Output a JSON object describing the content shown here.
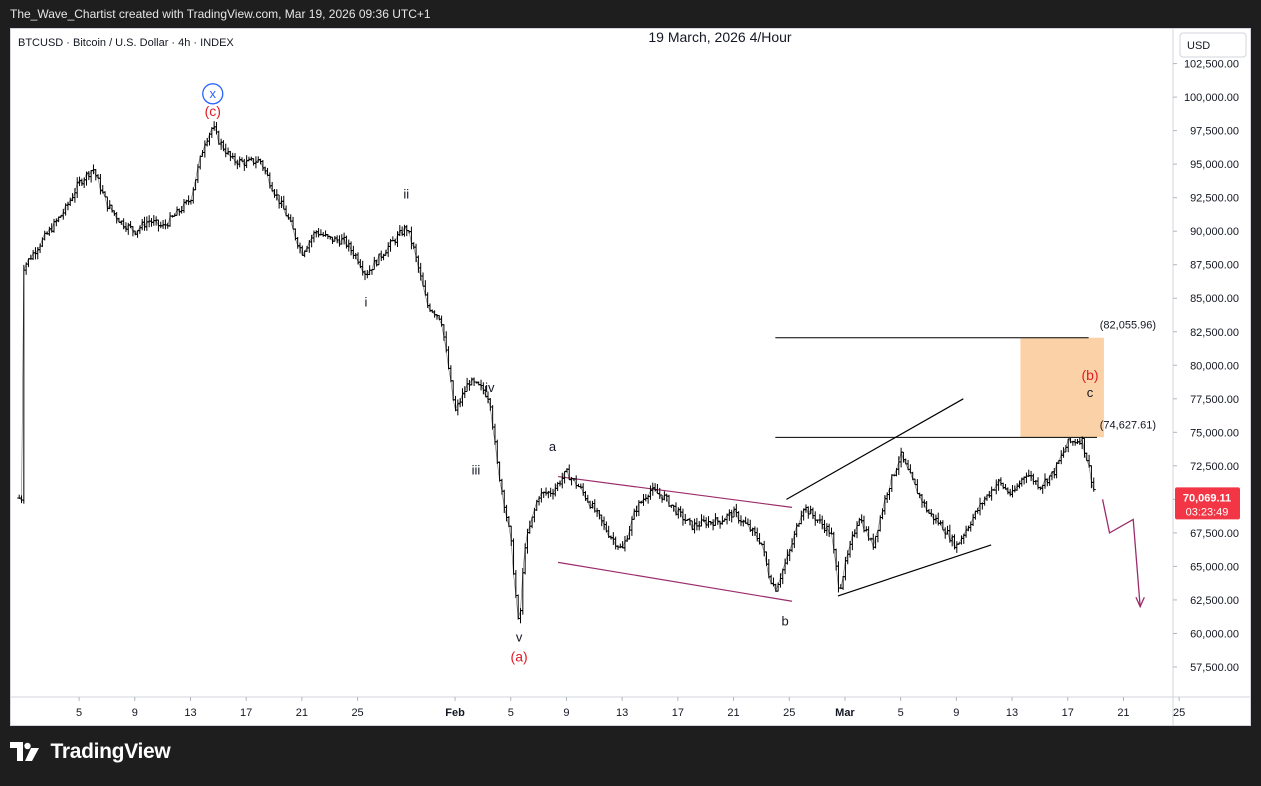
{
  "header": {
    "attribution": "The_Wave_Chartist created with TradingView.com, Mar 19, 2026 09:36 UTC+1"
  },
  "footer": {
    "brand": "TradingView",
    "logo_icon": "tradingview-logo-icon"
  },
  "colors": {
    "background_outer": "#1e1e1e",
    "panel": "#ffffff",
    "candles": "#000000",
    "wave_red": "#e01b24",
    "channel_purple": "#9c2b6b",
    "target_zone": "#fbd2a8",
    "price_tag": "#f23645",
    "circle_blue": "#2962ff"
  },
  "chart_data": {
    "type": "line",
    "symbol_label": "BTCUSD · Bitcoin / U.S. Dollar · 4h · INDEX",
    "title": "19 March, 2026 4/Hour",
    "currency": "USD",
    "ylim": [
      55500,
      104500
    ],
    "yticks": [
      "102,500.00",
      "100,000.00",
      "97,500.00",
      "95,000.00",
      "92,500.00",
      "90,000.00",
      "87,500.00",
      "85,000.00",
      "82,500.00",
      "80,000.00",
      "77,500.00",
      "75,000.00",
      "72,500.00",
      "70,000.00",
      "67,500.00",
      "65,000.00",
      "62,500.00",
      "60,000.00",
      "57,500.00"
    ],
    "ytick_values": [
      102500,
      100000,
      97500,
      95000,
      92500,
      90000,
      87500,
      85000,
      82500,
      80000,
      77500,
      75000,
      72500,
      70000,
      67500,
      65000,
      62500,
      60000,
      57500
    ],
    "xticks": [
      {
        "label": "5",
        "d": 5
      },
      {
        "label": "9",
        "d": 9
      },
      {
        "label": "13",
        "d": 13
      },
      {
        "label": "17",
        "d": 17
      },
      {
        "label": "21",
        "d": 21
      },
      {
        "label": "25",
        "d": 25
      },
      {
        "label": "Feb",
        "d": 32,
        "bold": true
      },
      {
        "label": "5",
        "d": 36
      },
      {
        "label": "9",
        "d": 40
      },
      {
        "label": "13",
        "d": 44
      },
      {
        "label": "17",
        "d": 48
      },
      {
        "label": "21",
        "d": 52
      },
      {
        "label": "25",
        "d": 56
      },
      {
        "label": "Mar",
        "d": 60,
        "bold": true
      },
      {
        "label": "5",
        "d": 64
      },
      {
        "label": "9",
        "d": 68
      },
      {
        "label": "13",
        "d": 72
      },
      {
        "label": "17",
        "d": 76
      },
      {
        "label": "21",
        "d": 80
      },
      {
        "label": "25",
        "d": 84
      }
    ],
    "series": [
      {
        "points": [
          [
            1,
            87300
          ],
          [
            2,
            88800
          ],
          [
            3,
            90200
          ],
          [
            4,
            91600
          ],
          [
            5,
            93600
          ],
          [
            6,
            94700
          ],
          [
            7,
            92000
          ],
          [
            8,
            90700
          ],
          [
            9,
            90000
          ],
          [
            10,
            90800
          ],
          [
            11,
            90300
          ],
          [
            12,
            91300
          ],
          [
            13,
            92400
          ],
          [
            14,
            96600
          ],
          [
            14.6,
            97800
          ],
          [
            15,
            96800
          ],
          [
            16,
            95300
          ],
          [
            17,
            95100
          ],
          [
            18,
            95300
          ],
          [
            19,
            93000
          ],
          [
            20,
            91000
          ],
          [
            21,
            88400
          ],
          [
            22,
            90000
          ],
          [
            23,
            89400
          ],
          [
            24,
            89300
          ],
          [
            25,
            88000
          ],
          [
            25.6,
            86800
          ],
          [
            27,
            88600
          ],
          [
            28.5,
            90300
          ],
          [
            29,
            88800
          ],
          [
            30,
            84500
          ],
          [
            31,
            83500
          ],
          [
            32,
            76500
          ],
          [
            33,
            78800
          ],
          [
            34,
            78200
          ],
          [
            34.5,
            77500
          ],
          [
            35,
            72800
          ],
          [
            36,
            67000
          ],
          [
            36.6,
            60100
          ],
          [
            37,
            66500
          ],
          [
            38,
            70300
          ],
          [
            39,
            70600
          ],
          [
            40,
            72000
          ],
          [
            41,
            70800
          ],
          [
            42,
            69200
          ],
          [
            43,
            67500
          ],
          [
            44,
            66200
          ],
          [
            45,
            69300
          ],
          [
            46,
            70700
          ],
          [
            47,
            70200
          ],
          [
            48,
            69000
          ],
          [
            49,
            68000
          ],
          [
            50,
            68300
          ],
          [
            51,
            68400
          ],
          [
            52,
            69000
          ],
          [
            53,
            68000
          ],
          [
            54,
            66800
          ],
          [
            54.5,
            64500
          ],
          [
            55,
            63300
          ],
          [
            56,
            66000
          ],
          [
            57,
            69500
          ],
          [
            58,
            68500
          ],
          [
            59,
            67500
          ],
          [
            59.6,
            63200
          ],
          [
            60,
            65000
          ],
          [
            61,
            68800
          ],
          [
            62,
            66500
          ],
          [
            63,
            70500
          ],
          [
            64,
            73300
          ],
          [
            65,
            71000
          ],
          [
            66,
            69000
          ],
          [
            67,
            68000
          ],
          [
            68,
            66500
          ],
          [
            69,
            68300
          ],
          [
            70,
            70000
          ],
          [
            71,
            71300
          ],
          [
            72,
            70300
          ],
          [
            73,
            72000
          ],
          [
            74,
            71000
          ],
          [
            75,
            72000
          ],
          [
            76,
            74200
          ],
          [
            77,
            74500
          ],
          [
            77.5,
            72500
          ],
          [
            78,
            70100
          ]
        ]
      }
    ],
    "annotations": [
      {
        "text": "x",
        "circled": true,
        "d": 14.6,
        "y": 99950
      },
      {
        "text": "(c)",
        "color": "red",
        "d": 14.6,
        "y": 98600
      },
      {
        "text": "ii",
        "d": 28.5,
        "y": 92450
      },
      {
        "text": "i",
        "d": 25.6,
        "y": 84400
      },
      {
        "text": "iv",
        "d": 34.5,
        "y": 78000
      },
      {
        "text": "iii",
        "d": 33.5,
        "y": 71850
      },
      {
        "text": "a",
        "d": 39,
        "y": 73600
      },
      {
        "text": "v",
        "d": 36.6,
        "y": 59400
      },
      {
        "text": "(a)",
        "color": "red",
        "d": 36.6,
        "y": 57900
      },
      {
        "text": "b",
        "d": 55.7,
        "y": 60600
      },
      {
        "text": "(b)",
        "color": "red",
        "d": 77.6,
        "y": 78900
      },
      {
        "text": "c",
        "d": 77.6,
        "y": 77650
      }
    ],
    "levels": [
      {
        "label": "(82,055.96)",
        "value": 82055.96
      },
      {
        "label": "(74,627.61)",
        "value": 74627.61
      }
    ],
    "last_price": {
      "value": "70,069.11",
      "countdown": "03:23:49"
    }
  }
}
